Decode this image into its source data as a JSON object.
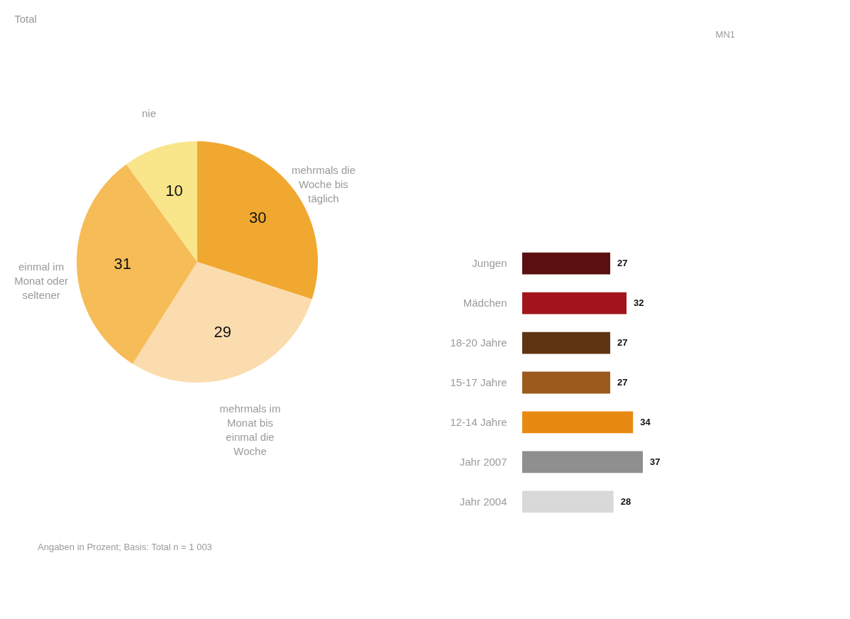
{
  "chart_data": [
    {
      "type": "pie",
      "title": "Total",
      "categories": [
        "mehrmals die Woche bis täglich",
        "mehrmals im Monat bis einmal die Woche",
        "einmal im Monat oder seltener",
        "nie"
      ],
      "values": [
        30,
        29,
        31,
        10
      ],
      "colors": [
        "#f0a830",
        "#fbdcae",
        "#f6bc58",
        "#f9e58a"
      ],
      "data_labels": true,
      "legend": false,
      "annotations": [
        "Angaben in Prozent; Basis: Total n = 1 003"
      ]
    },
    {
      "type": "bar",
      "orientation": "horizontal",
      "categories": [
        "Jungen",
        "Mädchen",
        "18-20 Jahre",
        "15-17 Jahre",
        "12-14 Jahre",
        "Jahr 2007",
        "Jahr 2004"
      ],
      "values": [
        27,
        32,
        27,
        27,
        34,
        37,
        28
      ],
      "colors": [
        "#5a1010",
        "#a3151c",
        "#5e3413",
        "#9c5a1c",
        "#e88a12",
        "#8f8f8f",
        "#d9d9d9"
      ],
      "data_labels": true,
      "annotations": [
        "MN1"
      ]
    }
  ]
}
